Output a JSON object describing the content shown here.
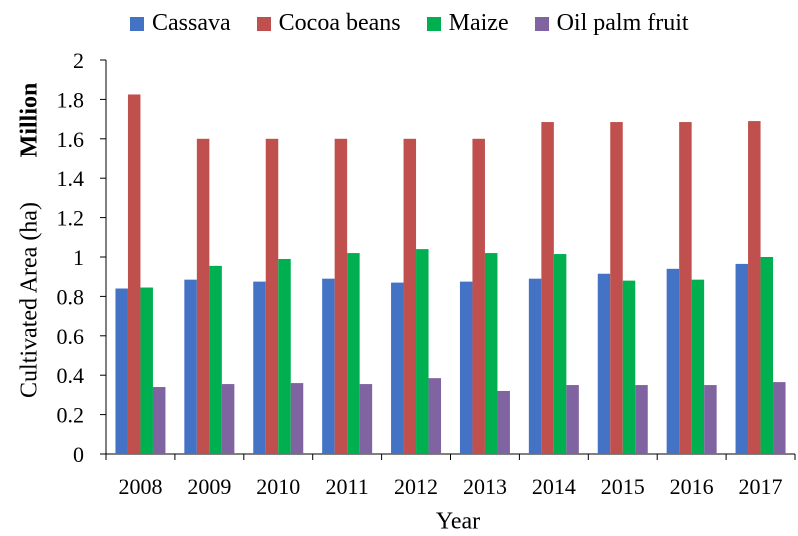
{
  "chart_data": {
    "type": "bar",
    "title": "",
    "xlabel": "Year",
    "ylabel": "Cultivated Area (ha)",
    "y_multiplier_label": "Million",
    "ylim": [
      0,
      2
    ],
    "yticks": [
      "0",
      "0.2",
      "0.4",
      "0.6",
      "0.8",
      "1",
      "1.2",
      "1.4",
      "1.6",
      "1.8",
      "2"
    ],
    "categories": [
      "2008",
      "2009",
      "2010",
      "2011",
      "2012",
      "2013",
      "2014",
      "2015",
      "2016",
      "2017"
    ],
    "legend_position": "top",
    "grid": false,
    "series": [
      {
        "name": "Cassava",
        "color": "#4472C4",
        "values": [
          0.84,
          0.885,
          0.875,
          0.89,
          0.87,
          0.875,
          0.89,
          0.915,
          0.94,
          0.965
        ]
      },
      {
        "name": "Cocoa beans",
        "color": "#C0504D",
        "values": [
          1.825,
          1.6,
          1.6,
          1.6,
          1.6,
          1.6,
          1.685,
          1.685,
          1.685,
          1.69
        ]
      },
      {
        "name": "Maize",
        "color": "#00B050",
        "values": [
          0.845,
          0.955,
          0.99,
          1.02,
          1.04,
          1.02,
          1.015,
          0.88,
          0.885,
          1.0
        ]
      },
      {
        "name": "Oil palm fruit",
        "color": "#8064A2",
        "values": [
          0.34,
          0.355,
          0.36,
          0.355,
          0.385,
          0.32,
          0.35,
          0.35,
          0.35,
          0.365
        ]
      }
    ]
  }
}
